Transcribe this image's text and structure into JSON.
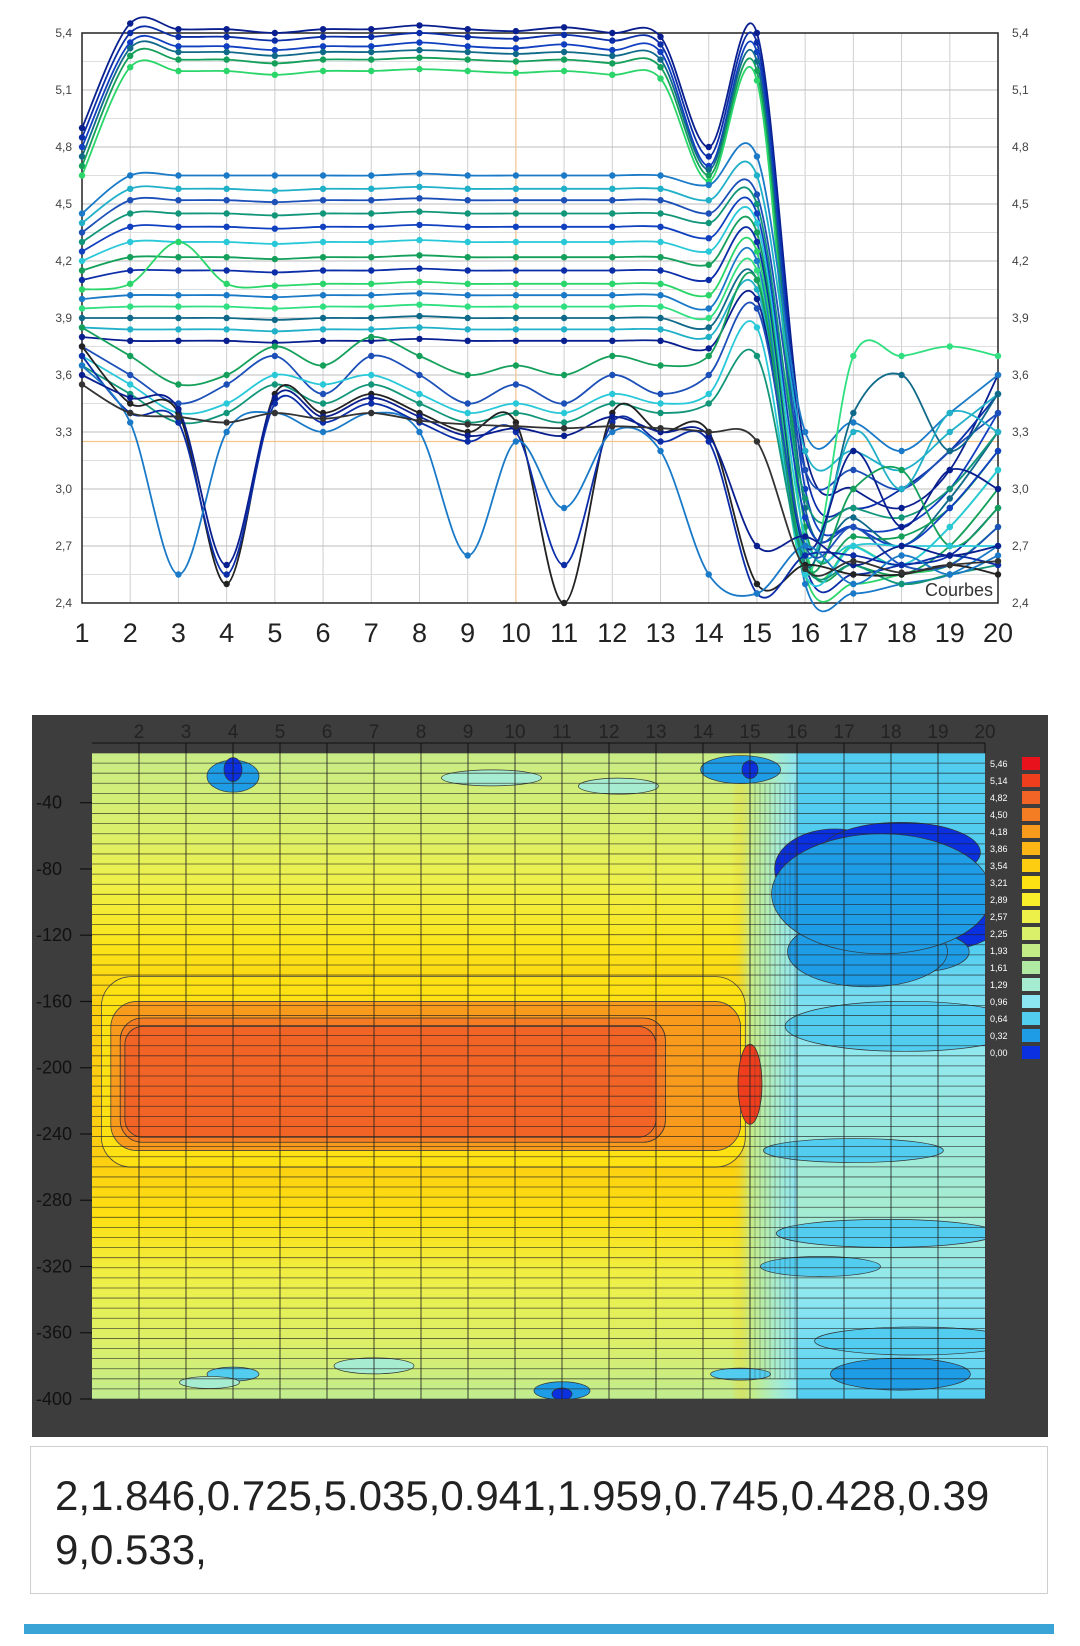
{
  "chart_data": [
    {
      "type": "line",
      "x": [
        1,
        2,
        3,
        4,
        5,
        6,
        7,
        8,
        9,
        10,
        11,
        12,
        13,
        14,
        15,
        16,
        17,
        18,
        19,
        20
      ],
      "y_ticks": [
        "5,4",
        "5,1",
        "4,8",
        "4,5",
        "4,2",
        "3,9",
        "3,6",
        "3,3",
        "3,0",
        "2,7",
        "2,4"
      ],
      "x_tick_labels": [
        "1",
        "2",
        "3",
        "4",
        "5",
        "6",
        "7",
        "8",
        "9",
        "10",
        "11",
        "12",
        "13",
        "14",
        "15",
        "16",
        "17",
        "18",
        "19",
        "20"
      ],
      "ylim": [
        2.4,
        5.4
      ],
      "grid": true,
      "legend_label": "Courbes",
      "series": [
        {
          "values": [
            4.9,
            5.45,
            5.42,
            5.42,
            5.4,
            5.42,
            5.42,
            5.44,
            5.42,
            5.41,
            5.43,
            5.4,
            5.38,
            4.8,
            5.4,
            3.2,
            3.0,
            2.9,
            3.1,
            3.6
          ],
          "color": "#0a1f8f"
        },
        {
          "values": [
            4.85,
            5.4,
            5.38,
            5.38,
            5.36,
            5.38,
            5.38,
            5.4,
            5.38,
            5.37,
            5.39,
            5.36,
            5.34,
            4.75,
            5.35,
            3.1,
            2.9,
            3.0,
            3.2,
            3.5
          ],
          "color": "#0b2ea8"
        },
        {
          "values": [
            4.8,
            5.35,
            5.33,
            5.33,
            5.31,
            5.33,
            5.33,
            5.35,
            5.33,
            5.32,
            5.34,
            5.31,
            5.3,
            4.7,
            5.3,
            3.0,
            2.8,
            2.8,
            3.0,
            3.4
          ],
          "color": "#1040c0"
        },
        {
          "values": [
            4.75,
            5.32,
            5.3,
            5.3,
            5.28,
            5.3,
            5.3,
            5.31,
            5.3,
            5.29,
            5.3,
            5.28,
            5.26,
            4.68,
            5.25,
            2.9,
            2.85,
            2.7,
            2.95,
            3.3
          ],
          "color": "#0f6a8a"
        },
        {
          "values": [
            4.7,
            5.28,
            5.26,
            5.26,
            5.24,
            5.26,
            5.26,
            5.27,
            5.26,
            5.25,
            5.26,
            5.24,
            5.22,
            4.65,
            5.2,
            2.8,
            2.75,
            2.75,
            2.9,
            3.2
          ],
          "color": "#14a05a"
        },
        {
          "values": [
            4.65,
            5.22,
            5.2,
            5.2,
            5.18,
            5.2,
            5.2,
            5.21,
            5.2,
            5.19,
            5.2,
            5.18,
            5.16,
            4.62,
            5.15,
            2.7,
            2.7,
            2.6,
            2.8,
            3.1
          ],
          "color": "#2ad66a"
        },
        {
          "values": [
            4.45,
            4.65,
            4.65,
            4.65,
            4.65,
            4.65,
            4.65,
            4.66,
            4.65,
            4.65,
            4.65,
            4.65,
            4.65,
            4.6,
            4.75,
            3.3,
            3.35,
            3.2,
            3.4,
            3.6
          ],
          "color": "#1a7ac8"
        },
        {
          "values": [
            4.4,
            4.58,
            4.58,
            4.58,
            4.57,
            4.58,
            4.58,
            4.59,
            4.58,
            4.58,
            4.58,
            4.58,
            4.58,
            4.52,
            4.65,
            3.2,
            3.2,
            3.1,
            3.3,
            3.5
          ],
          "color": "#20b0c8"
        },
        {
          "values": [
            4.35,
            4.52,
            4.52,
            4.52,
            4.51,
            4.52,
            4.52,
            4.53,
            4.52,
            4.52,
            4.52,
            4.52,
            4.52,
            4.45,
            4.55,
            3.1,
            3.1,
            3.0,
            3.2,
            3.4
          ],
          "color": "#1c50b8"
        },
        {
          "values": [
            4.3,
            4.45,
            4.45,
            4.45,
            4.44,
            4.45,
            4.45,
            4.46,
            4.45,
            4.45,
            4.45,
            4.45,
            4.45,
            4.4,
            4.5,
            2.95,
            2.9,
            2.85,
            3.0,
            3.3
          ],
          "color": "#12967a"
        },
        {
          "values": [
            4.25,
            4.38,
            4.38,
            4.38,
            4.37,
            4.38,
            4.38,
            4.39,
            4.38,
            4.38,
            4.38,
            4.38,
            4.38,
            4.32,
            4.45,
            2.85,
            2.8,
            2.7,
            2.9,
            3.2
          ],
          "color": "#1040c0"
        },
        {
          "values": [
            4.2,
            4.3,
            4.3,
            4.3,
            4.29,
            4.3,
            4.3,
            4.31,
            4.3,
            4.3,
            4.3,
            4.3,
            4.3,
            4.25,
            4.4,
            2.75,
            2.7,
            2.6,
            2.8,
            3.1
          ],
          "color": "#28c8d8"
        },
        {
          "values": [
            4.15,
            4.22,
            4.22,
            4.22,
            4.21,
            4.22,
            4.22,
            4.23,
            4.22,
            4.22,
            4.22,
            4.22,
            4.22,
            4.18,
            4.35,
            2.65,
            2.6,
            2.55,
            2.7,
            3.0
          ],
          "color": "#14a05a"
        },
        {
          "values": [
            4.1,
            4.15,
            4.15,
            4.15,
            4.14,
            4.15,
            4.15,
            4.16,
            4.15,
            4.15,
            4.15,
            4.15,
            4.15,
            4.1,
            4.3,
            2.6,
            2.55,
            2.6,
            2.65,
            2.9
          ],
          "color": "#0b2ea8"
        },
        {
          "values": [
            4.05,
            4.08,
            4.3,
            4.08,
            4.07,
            4.08,
            4.08,
            4.09,
            4.08,
            4.08,
            4.08,
            4.08,
            4.08,
            4.02,
            4.25,
            2.55,
            2.5,
            2.55,
            2.6,
            2.8
          ],
          "color": "#2ad66a"
        },
        {
          "values": [
            4.0,
            4.02,
            4.02,
            4.02,
            4.01,
            4.02,
            4.02,
            4.03,
            4.02,
            4.02,
            4.02,
            4.02,
            4.02,
            3.95,
            4.2,
            2.5,
            2.45,
            2.5,
            2.55,
            2.7
          ],
          "color": "#1a7ac8"
        },
        {
          "values": [
            3.95,
            3.96,
            3.96,
            3.96,
            3.95,
            3.96,
            3.96,
            3.97,
            3.96,
            3.96,
            3.96,
            3.96,
            3.96,
            3.9,
            4.15,
            2.55,
            3.7,
            3.7,
            3.75,
            3.7
          ],
          "color": "#30e080"
        },
        {
          "values": [
            3.9,
            3.9,
            3.9,
            3.9,
            3.89,
            3.9,
            3.9,
            3.91,
            3.9,
            3.9,
            3.9,
            3.9,
            3.9,
            3.85,
            4.1,
            2.6,
            3.4,
            3.6,
            3.2,
            3.5
          ],
          "color": "#0f6a8a"
        },
        {
          "values": [
            3.85,
            3.84,
            3.84,
            3.84,
            3.83,
            3.84,
            3.84,
            3.85,
            3.84,
            3.84,
            3.84,
            3.84,
            3.84,
            3.8,
            4.05,
            2.65,
            3.3,
            3.0,
            3.4,
            3.3
          ],
          "color": "#20b0c8"
        },
        {
          "values": [
            3.8,
            3.78,
            3.78,
            3.78,
            3.77,
            3.78,
            3.78,
            3.79,
            3.78,
            3.78,
            3.78,
            3.78,
            3.78,
            3.74,
            4.0,
            2.7,
            3.2,
            2.8,
            3.1,
            3.0
          ],
          "color": "#0a1f8f"
        },
        {
          "values": [
            3.85,
            3.7,
            3.55,
            3.6,
            3.75,
            3.65,
            3.8,
            3.7,
            3.6,
            3.65,
            3.6,
            3.7,
            3.65,
            3.7,
            4.1,
            2.6,
            3.0,
            3.1,
            2.7,
            2.9
          ],
          "color": "#14a05a"
        },
        {
          "values": [
            3.75,
            3.6,
            3.45,
            3.55,
            3.7,
            3.5,
            3.7,
            3.6,
            3.45,
            3.55,
            3.45,
            3.6,
            3.5,
            3.6,
            3.95,
            2.7,
            2.8,
            2.6,
            2.6,
            2.8
          ],
          "color": "#1c50b8"
        },
        {
          "values": [
            3.7,
            3.55,
            3.4,
            3.45,
            3.6,
            3.55,
            3.6,
            3.5,
            3.4,
            3.45,
            3.4,
            3.5,
            3.45,
            3.5,
            3.85,
            2.55,
            2.7,
            2.7,
            2.7,
            2.7
          ],
          "color": "#28c8d8"
        },
        {
          "values": [
            3.65,
            3.5,
            3.35,
            3.4,
            3.55,
            3.45,
            3.55,
            3.45,
            3.35,
            3.4,
            3.35,
            3.45,
            3.4,
            3.45,
            3.7,
            2.6,
            2.6,
            2.5,
            2.55,
            2.6
          ],
          "color": "#12967a"
        },
        {
          "values": [
            3.75,
            3.45,
            3.4,
            2.5,
            3.5,
            3.4,
            3.5,
            3.4,
            3.3,
            3.35,
            2.4,
            3.4,
            3.3,
            3.3,
            2.5,
            2.6,
            2.55,
            2.55,
            2.6,
            2.55
          ],
          "color": "#222222"
        },
        {
          "values": [
            3.7,
            3.4,
            3.35,
            2.55,
            3.45,
            3.35,
            3.45,
            3.35,
            3.25,
            3.3,
            2.6,
            3.35,
            3.25,
            3.25,
            2.45,
            2.65,
            2.65,
            2.6,
            2.65,
            2.6
          ],
          "color": "#0b2ea8"
        },
        {
          "values": [
            3.65,
            3.35,
            2.55,
            3.3,
            3.4,
            3.3,
            3.4,
            3.3,
            2.65,
            3.25,
            2.9,
            3.3,
            3.2,
            2.55,
            2.45,
            2.7,
            2.5,
            2.65,
            2.55,
            2.65
          ],
          "color": "#1a7ac8"
        },
        {
          "values": [
            3.6,
            3.48,
            3.42,
            2.6,
            3.48,
            3.38,
            3.48,
            3.38,
            3.28,
            3.32,
            3.28,
            3.38,
            3.3,
            3.28,
            2.7,
            2.75,
            2.6,
            2.7,
            2.65,
            2.7
          ],
          "color": "#0a1f8f"
        },
        {
          "values": [
            3.55,
            3.4,
            3.38,
            3.35,
            3.4,
            3.37,
            3.4,
            3.36,
            3.34,
            3.33,
            3.32,
            3.33,
            3.32,
            3.3,
            3.25,
            2.58,
            2.62,
            2.56,
            2.6,
            2.62
          ],
          "color": "#333333"
        }
      ]
    },
    {
      "type": "heatmap",
      "x_tick_labels": [
        "2",
        "3",
        "4",
        "5",
        "6",
        "7",
        "8",
        "9",
        "10",
        "11",
        "12",
        "13",
        "14",
        "15",
        "16",
        "17",
        "18",
        "19",
        "20"
      ],
      "x_range": [
        1,
        20
      ],
      "y_tick_labels": [
        "-40",
        "-80",
        "-120",
        "-160",
        "-200",
        "-240",
        "-280",
        "-320",
        "-360",
        "-400"
      ],
      "y_range": [
        -10,
        -400
      ],
      "color_scale": [
        {
          "label": "5,46",
          "color": "#e8121c"
        },
        {
          "label": "5,14",
          "color": "#ef3e1e"
        },
        {
          "label": "4,82",
          "color": "#f26426"
        },
        {
          "label": "4,50",
          "color": "#f47c22"
        },
        {
          "label": "4,18",
          "color": "#f89a1c"
        },
        {
          "label": "3,86",
          "color": "#fbb514"
        },
        {
          "label": "3,54",
          "color": "#fccd10"
        },
        {
          "label": "3,21",
          "color": "#fde112"
        },
        {
          "label": "2,89",
          "color": "#f9ee2a"
        },
        {
          "label": "2,57",
          "color": "#eef04a"
        },
        {
          "label": "2,25",
          "color": "#daef6a"
        },
        {
          "label": "1,93",
          "color": "#c4ec86"
        },
        {
          "label": "1,61",
          "color": "#b0eaa2"
        },
        {
          "label": "1,29",
          "color": "#a6ecd0"
        },
        {
          "label": "0,96",
          "color": "#8ce6f2"
        },
        {
          "label": "0,64",
          "color": "#52cdf0"
        },
        {
          "label": "0,32",
          "color": "#1e9ce6"
        },
        {
          "label": "0,00",
          "color": "#0a30e0"
        }
      ]
    }
  ],
  "data_text": "2,1.846,0.725,5.035,0.941,1.959,0.745,0.428,0.399,0.533,"
}
